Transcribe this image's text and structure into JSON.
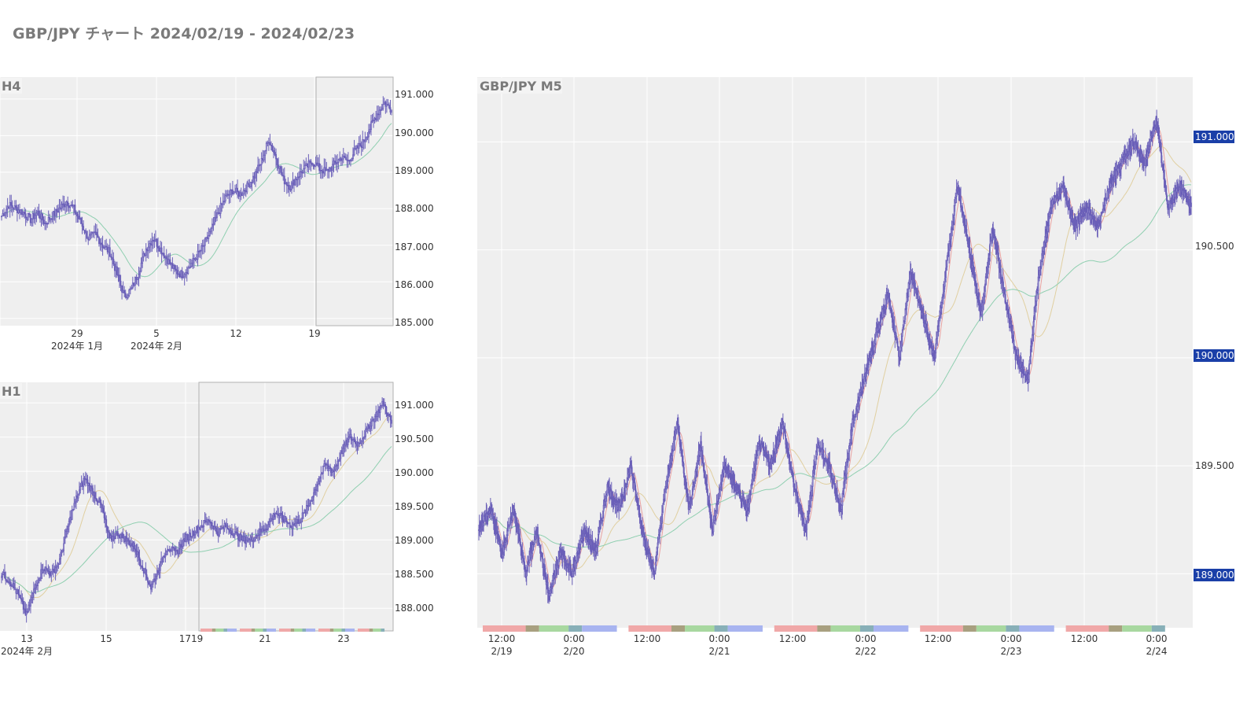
{
  "page": {
    "title": "GBP/JPY チャート 2024/02/19 - 2024/02/23"
  },
  "colors": {
    "candle": "#6a5fb8",
    "ma_short": "#e8a0a0",
    "ma_mid": "#e0cfa0",
    "ma_long": "#8fcfb0",
    "plot_bg": "#efefef",
    "grid": "#ffffff",
    "badge": "#1a3fa8",
    "session_asia": "#f0a8a8",
    "session_overlap": "#a8a080",
    "session_london": "#a8d8a0",
    "session_overlap2": "#88b0b8",
    "session_ny": "#a8b4f0"
  },
  "chart_data": [
    {
      "id": "h4",
      "type": "line",
      "title": "H4",
      "y_ticks": [
        "191.000",
        "190.000",
        "189.000",
        "188.000",
        "187.000",
        "186.000",
        "185.000"
      ],
      "y_tick_values": [
        191,
        190,
        189,
        188,
        187,
        186,
        185
      ],
      "ylim": [
        184.8,
        191.6
      ],
      "x_ticks": [
        {
          "label": "29",
          "sub": "2024年 1月"
        },
        {
          "label": "5",
          "sub": "2024年 2月"
        },
        {
          "label": "12",
          "sub": ""
        },
        {
          "label": "19",
          "sub": ""
        }
      ],
      "highlight": "2024/02/19 - 2024/02/23",
      "series": [
        {
          "values": [
            187.8,
            188.1,
            188.0,
            187.9,
            187.7,
            187.9,
            187.6,
            187.8,
            188.0,
            188.2,
            188.0,
            187.6,
            187.2,
            187.3,
            187.0,
            186.8,
            186.2,
            185.6,
            185.8,
            186.3,
            186.9,
            187.2,
            186.9,
            186.6,
            186.3,
            186.2,
            186.4,
            186.7,
            187.0,
            187.4,
            187.9,
            188.3,
            188.5,
            188.4,
            188.6,
            188.9,
            189.3,
            189.9,
            189.4,
            188.8,
            188.6,
            188.9,
            189.1,
            189.3,
            189.1,
            189.0,
            189.2,
            189.4,
            189.3,
            189.6,
            189.8,
            190.2,
            190.6,
            190.9,
            190.7
          ]
        }
      ]
    },
    {
      "id": "h1",
      "type": "line",
      "title": "H1",
      "y_ticks": [
        "191.000",
        "190.500",
        "190.000",
        "189.500",
        "189.000",
        "188.500",
        "188.000"
      ],
      "y_tick_values": [
        191,
        190.5,
        190,
        189.5,
        189,
        188.5,
        188
      ],
      "ylim": [
        187.67,
        191.3
      ],
      "x_ticks": [
        {
          "label": "13",
          "sub": "2024年 2月"
        },
        {
          "label": "15",
          "sub": ""
        },
        {
          "label": "1719",
          "sub": ""
        },
        {
          "label": "21",
          "sub": ""
        },
        {
          "label": "23",
          "sub": ""
        }
      ],
      "highlight": "2024/02/19 - 2024/02/23",
      "series": [
        {
          "values": [
            188.5,
            188.4,
            188.2,
            187.9,
            188.3,
            188.6,
            188.5,
            188.7,
            189.2,
            189.6,
            189.9,
            189.7,
            189.5,
            189.0,
            189.1,
            189.0,
            188.9,
            188.6,
            188.3,
            188.6,
            188.9,
            188.8,
            189.0,
            189.1,
            189.2,
            189.3,
            189.1,
            189.2,
            189.1,
            189.0,
            189.0,
            189.1,
            189.2,
            189.4,
            189.3,
            189.2,
            189.3,
            189.5,
            189.8,
            190.1,
            190.0,
            190.3,
            190.5,
            190.4,
            190.6,
            190.8,
            191.0,
            190.7
          ]
        }
      ]
    },
    {
      "id": "m5",
      "type": "line",
      "title": "GBP/JPY M5",
      "y_ticks": [
        "191.000",
        "190.500",
        "190.000",
        "189.500",
        "189.000"
      ],
      "y_tick_values": [
        191,
        190.5,
        190,
        189.5,
        189
      ],
      "highlighted_ticks": [
        "191.000",
        "190.000",
        "189.000"
      ],
      "ylim": [
        188.75,
        191.3
      ],
      "x_ticks": [
        {
          "label": "12:00",
          "sub": "2/19"
        },
        {
          "label": "0:00",
          "sub": "2/20"
        },
        {
          "label": "12:00",
          "sub": ""
        },
        {
          "label": "0:00",
          "sub": "2/21"
        },
        {
          "label": "12:00",
          "sub": ""
        },
        {
          "label": "0:00",
          "sub": "2/22"
        },
        {
          "label": "12:00",
          "sub": ""
        },
        {
          "label": "0:00",
          "sub": "2/23"
        },
        {
          "label": "12:00",
          "sub": ""
        },
        {
          "label": "0:00",
          "sub": "2/24"
        }
      ],
      "series": [
        {
          "values": [
            189.2,
            189.3,
            189.1,
            189.3,
            189.0,
            189.2,
            188.9,
            189.1,
            189.0,
            189.2,
            189.1,
            189.4,
            189.3,
            189.5,
            189.2,
            189.0,
            189.4,
            189.7,
            189.3,
            189.6,
            189.2,
            189.5,
            189.4,
            189.3,
            189.6,
            189.5,
            189.7,
            189.4,
            189.2,
            189.6,
            189.5,
            189.3,
            189.7,
            189.9,
            190.1,
            190.3,
            190.0,
            190.4,
            190.2,
            190.0,
            190.4,
            190.8,
            190.5,
            190.2,
            190.6,
            190.3,
            190.0,
            189.9,
            190.4,
            190.7,
            190.8,
            190.6,
            190.7,
            190.6,
            190.8,
            190.9,
            191.0,
            190.9,
            191.1,
            190.7,
            190.8,
            190.7
          ]
        }
      ]
    }
  ]
}
